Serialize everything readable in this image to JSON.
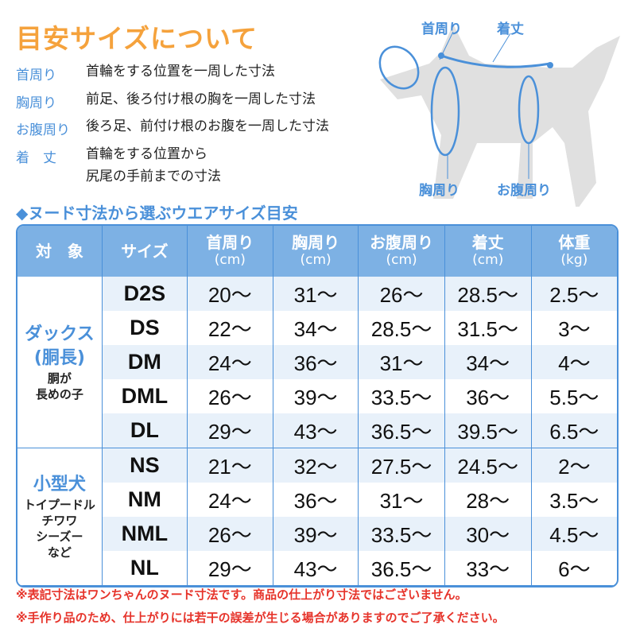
{
  "title": "目安サイズについて",
  "definitions": [
    {
      "label": "首周り",
      "text": "首輪をする位置を一周した寸法"
    },
    {
      "label": "胸周り",
      "text": "前足、後ろ付け根の胸を一周した寸法"
    },
    {
      "label": "お腹周り",
      "text": "後ろ足、前付け根のお腹を一周した寸法"
    },
    {
      "label": "着　丈",
      "text": "首輪をする位置から",
      "text2": "尻尾の手前までの寸法"
    }
  ],
  "diagram": {
    "neck": "首周り",
    "length": "着丈",
    "chest": "胸周り",
    "belly": "お腹周り",
    "colors": {
      "dog": "#e0e0e0",
      "line": "#4a90d9"
    }
  },
  "subtitle": "◆ヌード寸法から選ぶウエアサイズ目安",
  "table": {
    "headers": [
      {
        "label": "対　象"
      },
      {
        "label": "サイズ"
      },
      {
        "label": "首周り",
        "unit": "(cm)"
      },
      {
        "label": "胸周り",
        "unit": "(cm)"
      },
      {
        "label": "お腹周り",
        "unit": "(cm)"
      },
      {
        "label": "着丈",
        "unit": "(cm)"
      },
      {
        "label": "体重",
        "unit": "(kg)"
      }
    ],
    "groups": [
      {
        "name": "ダックス",
        "name2": "(胴長)",
        "desc": "胴が",
        "desc2": "長めの子",
        "rows": [
          [
            "D2S",
            "20〜",
            "31〜",
            "26〜",
            "28.5〜",
            "2.5〜"
          ],
          [
            "DS",
            "22〜",
            "34〜",
            "28.5〜",
            "31.5〜",
            "3〜"
          ],
          [
            "DM",
            "24〜",
            "36〜",
            "31〜",
            "34〜",
            "4〜"
          ],
          [
            "DML",
            "26〜",
            "39〜",
            "33.5〜",
            "36〜",
            "5.5〜"
          ],
          [
            "DL",
            "29〜",
            "43〜",
            "36.5〜",
            "39.5〜",
            "6.5〜"
          ]
        ]
      },
      {
        "name": "小型犬",
        "desc": "トイプードル",
        "desc2": "チワワ",
        "desc3": "シーズー",
        "desc4": "など",
        "rows": [
          [
            "NS",
            "21〜",
            "32〜",
            "27.5〜",
            "24.5〜",
            "2〜"
          ],
          [
            "NM",
            "24〜",
            "36〜",
            "31〜",
            "28〜",
            "3.5〜"
          ],
          [
            "NML",
            "26〜",
            "39〜",
            "33.5〜",
            "30〜",
            "4.5〜"
          ],
          [
            "NL",
            "29〜",
            "43〜",
            "36.5〜",
            "33〜",
            "6〜"
          ]
        ]
      }
    ]
  },
  "notes": [
    "※表記寸法はワンちゃんのヌード寸法です。商品の仕上がり寸法ではございません。",
    "※手作り品のため、仕上がりには若干の誤差が生じる場合がありますのでご了承ください。"
  ]
}
